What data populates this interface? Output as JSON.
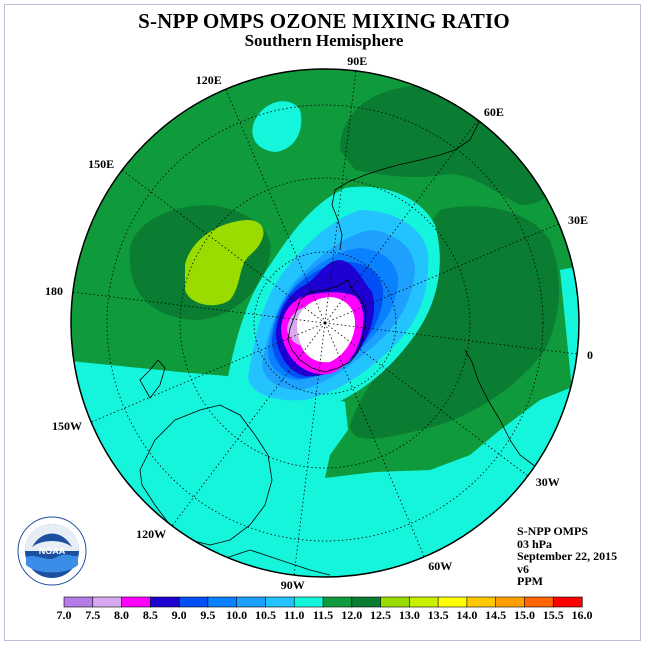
{
  "title": "S-NPP OMPS OZONE MIXING RATIO",
  "subtitle": "Southern Hemisphere",
  "longitude_labels": [
    {
      "label": "90W",
      "lon": -90
    },
    {
      "label": "60W",
      "lon": -60
    },
    {
      "label": "30W",
      "lon": -30
    },
    {
      "label": "0",
      "lon": 0
    },
    {
      "label": "30E",
      "lon": 30
    },
    {
      "label": "60E",
      "lon": 60
    },
    {
      "label": "90E",
      "lon": 90
    },
    {
      "label": "120E",
      "lon": 120
    },
    {
      "label": "150E",
      "lon": 150
    },
    {
      "label": "180",
      "lon": 180
    },
    {
      "label": "150W",
      "lon": -150
    },
    {
      "label": "120W",
      "lon": -120
    }
  ],
  "info": {
    "instrument": "S-NPP OMPS",
    "level": "03 hPa",
    "date": "September 22, 2015",
    "version": "v6",
    "units": "PPM"
  },
  "colorbar": {
    "labels": [
      "7.0",
      "7.5",
      "8.0",
      "8.5",
      "9.0",
      "9.5",
      "10.0",
      "10.5",
      "11.0",
      "11.5",
      "12.0",
      "12.5",
      "13.0",
      "13.5",
      "14.0",
      "14.5",
      "15.0",
      "15.5",
      "16.0"
    ],
    "colors": [
      "#b57be6",
      "#d8a8f0",
      "#ff00ff",
      "#1e00d2",
      "#0050f5",
      "#0a82ff",
      "#1ea0ff",
      "#23c3ff",
      "#14f5dc",
      "#0f9b3c",
      "#0a7d32",
      "#9bdc00",
      "#c8f000",
      "#ffff00",
      "#ffc800",
      "#ffa000",
      "#ff6400",
      "#ff0000",
      "#8b5a3c"
    ]
  },
  "colors": {
    "band_11_0": "#14f5dc",
    "band_11_5": "#0f9b3c",
    "band_12_0": "#0a7d32",
    "band_12_5": "#9bdc00",
    "band_10_5": "#23c3ff",
    "band_10_0": "#1ea0ff",
    "band_9_5": "#0a82ff",
    "band_9_0": "#0050f5",
    "band_8_5": "#1e00d2",
    "band_8_0": "#ff00ff",
    "band_7_5": "#d8a8f0"
  }
}
